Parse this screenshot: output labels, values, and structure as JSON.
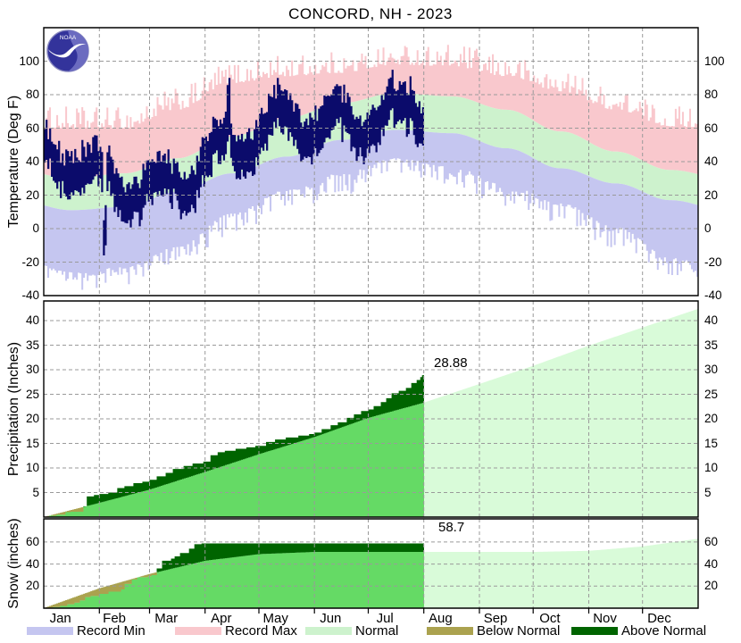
{
  "title": "CONCORD, NH - 2023",
  "logo": {
    "text": "NOAA"
  },
  "calendar": {
    "months": [
      "Jan",
      "Feb",
      "Mar",
      "Apr",
      "May",
      "Jun",
      "Jul",
      "Aug",
      "Sep",
      "Oct",
      "Nov",
      "Dec"
    ],
    "month_start_days": [
      0,
      31,
      59,
      90,
      120,
      151,
      181,
      212,
      243,
      273,
      304,
      334,
      365
    ]
  },
  "axes": {
    "temperature": {
      "label": "Temperature (Deg F)",
      "ticks": [
        100,
        80,
        60,
        40,
        20,
        0,
        -20,
        -40
      ]
    },
    "precipitation": {
      "label": "Precipitation (Inches)",
      "ticks": [
        40,
        35,
        30,
        25,
        20,
        15,
        10,
        5
      ]
    },
    "snow": {
      "label": "Snow (inches)",
      "ticks": [
        60,
        40,
        20
      ]
    }
  },
  "annotations": {
    "precip_total": "28.88",
    "snow_total": "58.7"
  },
  "colors": {
    "record_min": "#c5c6f0",
    "record_max": "#f9c8cd",
    "normal_band": "#cdf2cd",
    "normal_cum_future": "#d9fbd9",
    "normal_cum_overlap": "#65da65",
    "below_normal": "#aba24f",
    "above_normal": "#006400",
    "observed_temp": "#0b0b6b",
    "grid": "#9a9a9a",
    "border": "#000000"
  },
  "legend": {
    "items": [
      {
        "label": "Record Min",
        "color_key": "record_min"
      },
      {
        "label": "Record Max",
        "color_key": "record_max"
      },
      {
        "label": "Normal",
        "color_key": "normal_band"
      },
      {
        "label": "Below Normal",
        "color_key": "below_normal"
      },
      {
        "label": "Above Normal",
        "color_key": "above_normal"
      }
    ]
  },
  "chart_data": [
    {
      "id": "temperature",
      "type": "band+hilo",
      "title": "CONCORD, NH - 2023",
      "ylabel": "Temperature (Deg F)",
      "ylim": [
        -40,
        120
      ],
      "yticks": [
        -40,
        -20,
        0,
        20,
        40,
        60,
        80,
        100
      ],
      "grid": true,
      "month_mid_anchors": {
        "record_max": [
          63,
          63,
          74,
          90,
          94,
          96,
          101,
          100,
          94,
          85,
          74,
          64
        ],
        "normal_max": [
          30,
          33,
          42,
          55,
          66,
          75,
          81,
          79,
          71,
          58,
          46,
          35
        ],
        "normal_min": [
          11,
          13,
          22,
          33,
          43,
          53,
          59,
          57,
          48,
          36,
          27,
          17
        ],
        "record_min": [
          -29,
          -26,
          -14,
          6,
          20,
          30,
          39,
          34,
          23,
          12,
          -2,
          -20
        ]
      },
      "observed": {
        "through_day": 212,
        "monthly_mean": [
          31,
          25,
          34,
          48,
          58,
          66,
          73
        ],
        "typical_daily_range": 20,
        "events": [
          {
            "day": 33,
            "max": 5,
            "min": -16
          },
          {
            "day": 34,
            "max": 14,
            "min": -10
          },
          {
            "day": 102,
            "max": 87,
            "min": 52
          },
          {
            "day": 103,
            "max": 90,
            "min": 56
          },
          {
            "day": 204,
            "max": 91,
            "min": 66
          }
        ]
      },
      "noise_seed": 1234
    },
    {
      "id": "precipitation",
      "type": "cumulative-area",
      "ylabel": "Precipitation (Inches)",
      "ylim": [
        0,
        44
      ],
      "yticks": [
        5,
        10,
        15,
        20,
        25,
        30,
        35,
        40
      ],
      "grid": true,
      "through_day": 212,
      "total": 28.88,
      "normal_cum_month_end": [
        0,
        2.9,
        5.6,
        9.2,
        12.8,
        16.3,
        20.2,
        23.3,
        27.1,
        30.8,
        34.9,
        38.6,
        42.4
      ],
      "actual_steps": [
        [
          0,
          0
        ],
        [
          3,
          0.3
        ],
        [
          7,
          0.5
        ],
        [
          12,
          1.0
        ],
        [
          15,
          1.1
        ],
        [
          22,
          2.2
        ],
        [
          24,
          4.2
        ],
        [
          28,
          4.5
        ],
        [
          31,
          4.7
        ],
        [
          36,
          5.0
        ],
        [
          41,
          5.9
        ],
        [
          45,
          6.3
        ],
        [
          50,
          6.9
        ],
        [
          55,
          7.2
        ],
        [
          59,
          7.6
        ],
        [
          63,
          8.3
        ],
        [
          68,
          9.0
        ],
        [
          72,
          9.8
        ],
        [
          78,
          10.4
        ],
        [
          83,
          10.9
        ],
        [
          89,
          11.3
        ],
        [
          93,
          12.6
        ],
        [
          97,
          13.2
        ],
        [
          101,
          13.5
        ],
        [
          107,
          13.9
        ],
        [
          113,
          14.2
        ],
        [
          118,
          14.5
        ],
        [
          124,
          15.3
        ],
        [
          129,
          15.8
        ],
        [
          135,
          16.2
        ],
        [
          142,
          16.6
        ],
        [
          148,
          16.9
        ],
        [
          151,
          17.2
        ],
        [
          155,
          17.9
        ],
        [
          160,
          18.7
        ],
        [
          164,
          19.3
        ],
        [
          169,
          20.2
        ],
        [
          173,
          20.9
        ],
        [
          177,
          21.6
        ],
        [
          181,
          21.9
        ],
        [
          184,
          22.6
        ],
        [
          188,
          23.4
        ],
        [
          191,
          24.2
        ],
        [
          194,
          25.2
        ],
        [
          198,
          25.7
        ],
        [
          202,
          26.3
        ],
        [
          205,
          27.3
        ],
        [
          208,
          27.9
        ],
        [
          210,
          28.5
        ],
        [
          211,
          28.88
        ]
      ]
    },
    {
      "id": "snow",
      "type": "cumulative-area",
      "ylabel": "Snow (inches)",
      "ylim": [
        0,
        81
      ],
      "yticks": [
        20,
        40,
        60
      ],
      "grid": true,
      "through_day": 212,
      "total": 58.7,
      "normal_cum_month_end": [
        0,
        18,
        31,
        43,
        49,
        51,
        51,
        51,
        51,
        51,
        52,
        56,
        63
      ],
      "actual_steps": [
        [
          0,
          0
        ],
        [
          5,
          1
        ],
        [
          9,
          2
        ],
        [
          13,
          3.5
        ],
        [
          17,
          5
        ],
        [
          20,
          7
        ],
        [
          23,
          10
        ],
        [
          26,
          11
        ],
        [
          31,
          13
        ],
        [
          36,
          15
        ],
        [
          43,
          17
        ],
        [
          45,
          22
        ],
        [
          49,
          26
        ],
        [
          52,
          28
        ],
        [
          58,
          29
        ],
        [
          60,
          30
        ],
        [
          63,
          36
        ],
        [
          66,
          43
        ],
        [
          71,
          45
        ],
        [
          73,
          47
        ],
        [
          76,
          50
        ],
        [
          81,
          54
        ],
        [
          84,
          58
        ],
        [
          88,
          58.7
        ],
        [
          211,
          58.7
        ]
      ]
    }
  ]
}
